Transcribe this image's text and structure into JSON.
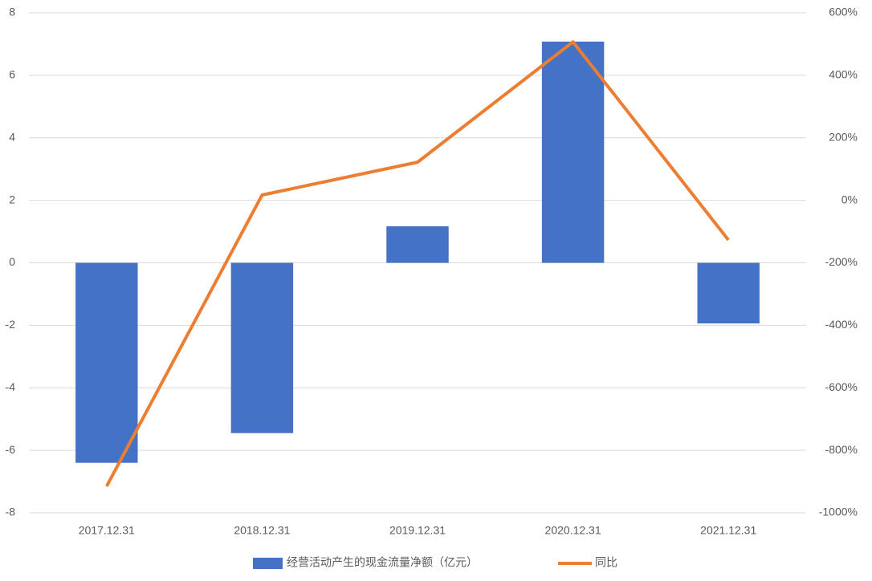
{
  "chart_data": {
    "type": "bar-line",
    "categories": [
      "2017.12.31",
      "2018.12.31",
      "2019.12.31",
      "2020.12.31",
      "2021.12.31"
    ],
    "series": [
      {
        "name": "经营活动产生的现金流量净额（亿元）",
        "type": "bar",
        "color": "#4472c4",
        "values": [
          -6.4,
          -5.45,
          1.17,
          7.08,
          -1.94
        ]
      },
      {
        "name": "同比",
        "type": "line",
        "axis": "y2",
        "color": "#ed7d31",
        "values": [
          -915,
          17,
          122,
          507,
          -127
        ]
      }
    ],
    "ylim": [
      -8,
      8
    ],
    "yticks": [
      -8,
      -6,
      -4,
      -2,
      0,
      2,
      4,
      6,
      8
    ],
    "y2lim": [
      -1000,
      600
    ],
    "y2ticks": [
      {
        "value": -1000,
        "label": "-1000%"
      },
      {
        "value": -800,
        "label": "-800%"
      },
      {
        "value": -600,
        "label": "-600%"
      },
      {
        "value": -400,
        "label": "-400%"
      },
      {
        "value": -200,
        "label": "-200%"
      },
      {
        "value": 0,
        "label": "0%"
      },
      {
        "value": 200,
        "label": "200%"
      },
      {
        "value": 400,
        "label": "400%"
      },
      {
        "value": 600,
        "label": "600%"
      }
    ],
    "grid": true,
    "legend": "bottom"
  }
}
